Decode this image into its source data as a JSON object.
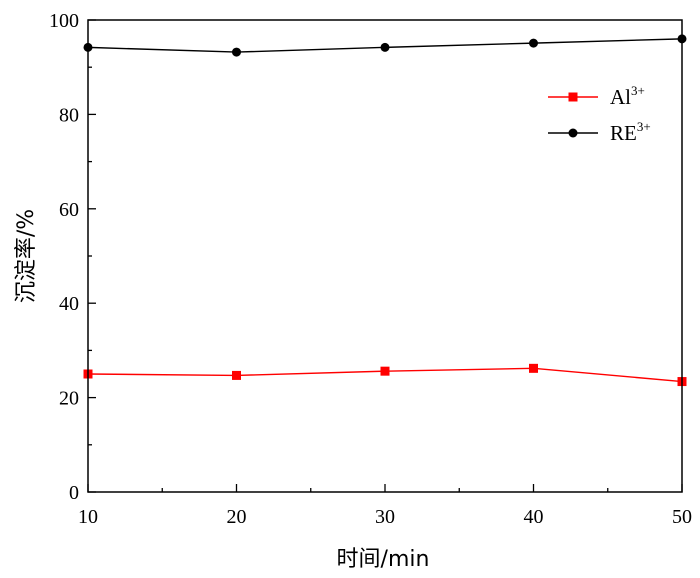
{
  "chart_data": {
    "type": "line",
    "x": [
      10,
      20,
      30,
      40,
      50
    ],
    "xlabel": "时间/min",
    "ylabel": "沉淀率/%",
    "xlim": [
      10,
      50
    ],
    "ylim": [
      0,
      100
    ],
    "xticks": [
      "10",
      "20",
      "30",
      "40",
      "50"
    ],
    "yticks": [
      "0",
      "20",
      "40",
      "60",
      "80",
      "100"
    ],
    "grid": false,
    "legend_position": "top-right",
    "series": [
      {
        "name": "Al",
        "sup": "3+",
        "color": "#ff0000",
        "marker": "square",
        "values": [
          25.0,
          24.7,
          25.6,
          26.2,
          23.4
        ]
      },
      {
        "name": "RE",
        "sup": "3+",
        "color": "#000000",
        "marker": "circle",
        "values": [
          94.2,
          93.2,
          94.2,
          95.1,
          96.0
        ]
      }
    ]
  }
}
